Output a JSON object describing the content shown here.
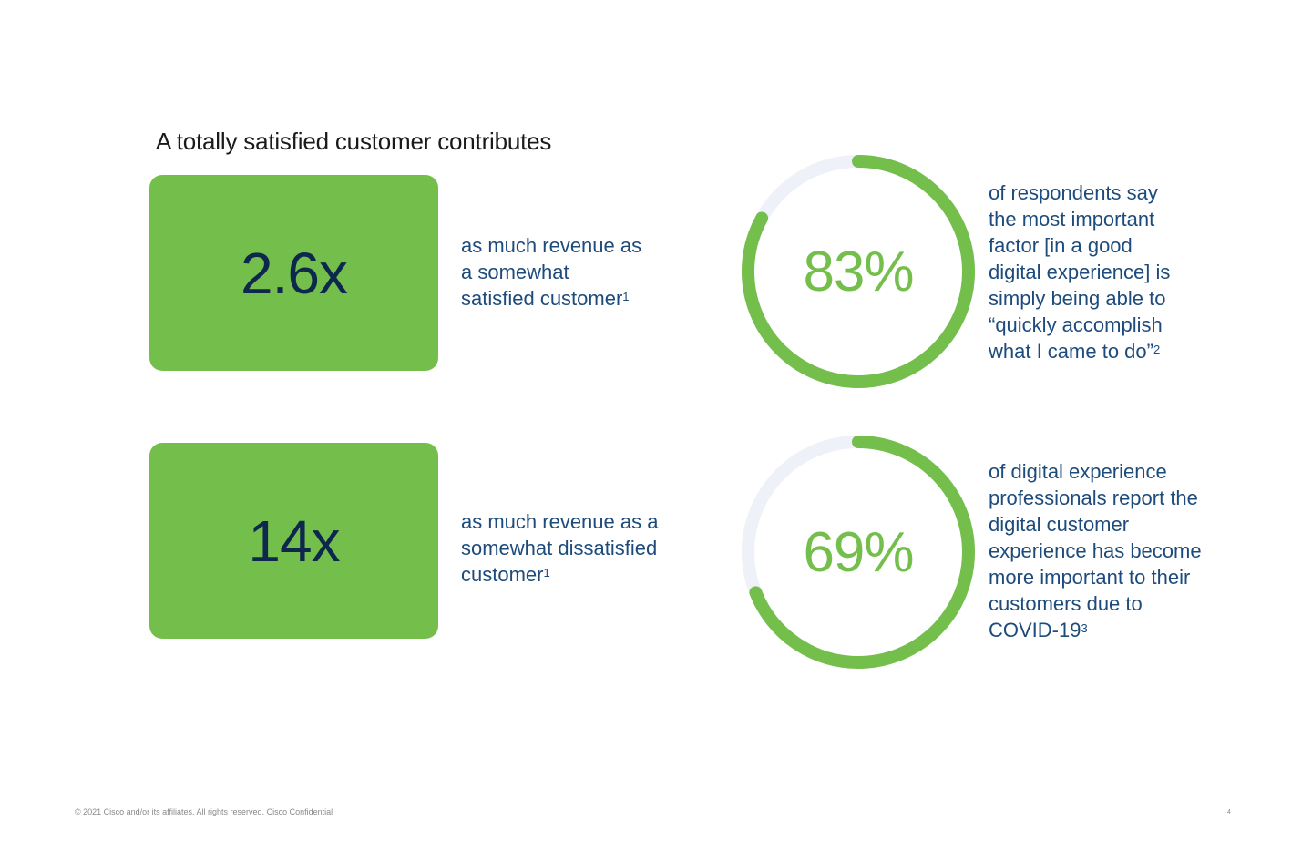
{
  "title": "A totally satisfied customer contributes",
  "colors": {
    "accent_green": "#74bf4b",
    "track_gray": "#eef1f8",
    "navy_text": "#0d274d",
    "body_text": "#1d4b7c"
  },
  "stats": [
    {
      "value": "2.6x",
      "lines": [
        "as much revenue as",
        "a somewhat",
        "satisfied customer"
      ],
      "footnote": "1"
    },
    {
      "value": "14x",
      "lines": [
        "as much revenue as a",
        "somewhat dissatisfied",
        "customer"
      ],
      "footnote": "1"
    }
  ],
  "rings": [
    {
      "value": "83%",
      "fraction": 0.83,
      "lines": [
        "of respondents say",
        "the most important",
        "factor [in a good",
        "digital experience] is",
        "simply being able to",
        "“quickly accomplish",
        "what I came to do”"
      ],
      "footnote": "2"
    },
    {
      "value": "69%",
      "fraction": 0.69,
      "lines": [
        "of digital experience",
        "professionals report the",
        "digital customer",
        "experience has become",
        "more important to their",
        "customers due to",
        "COVID-19"
      ],
      "footnote": "3"
    }
  ],
  "footer": "© 2021  Cisco and/or its affiliates. All rights reserved.   Cisco Confidential",
  "page_number": "4"
}
